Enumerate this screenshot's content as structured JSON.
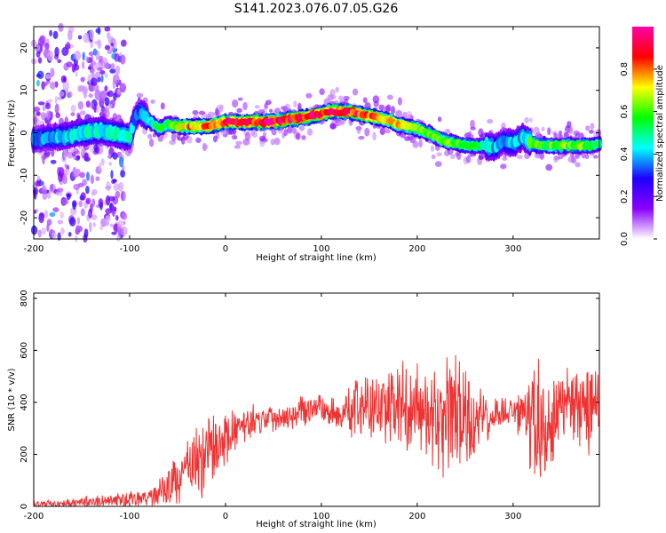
{
  "figure": {
    "title": "S141.2023.076.07.05.G26"
  },
  "chart_data": [
    {
      "type": "heatmap",
      "name": "spectrogram",
      "xlabel": "Height of straight line (km)",
      "ylabel": "Frequency (Hz)",
      "xlim": [
        -200,
        390
      ],
      "ylim": [
        -25,
        25
      ],
      "xticks": [
        -200,
        -100,
        0,
        100,
        200,
        300
      ],
      "yticks": [
        -20,
        -10,
        0,
        10,
        20
      ],
      "colorbar": {
        "label": "Normalized spectral amplitude",
        "range": [
          0,
          1
        ],
        "ticks": [
          "0.0",
          "0.2",
          "0.4",
          "0.6",
          "0.8"
        ],
        "colormap": [
          "#ffffff",
          "#8a00ff",
          "#1e00ff",
          "#00ffff",
          "#00ff00",
          "#ffff00",
          "#ff0000",
          "#ff00aa"
        ]
      },
      "ridge": {
        "x": [
          -200,
          -170,
          -150,
          -130,
          -110,
          -100,
          -95,
          -90,
          -80,
          -70,
          -60,
          -50,
          -40,
          -30,
          -20,
          -10,
          0,
          20,
          40,
          60,
          80,
          100,
          110,
          120,
          130,
          140,
          150,
          160,
          170,
          180,
          190,
          200,
          210,
          220,
          230,
          240,
          250,
          260,
          270,
          280,
          290,
          300,
          310,
          320,
          330,
          340,
          350,
          360,
          370,
          380,
          390
        ],
        "freq": [
          -1.5,
          -1,
          0,
          0.5,
          -0.5,
          -1,
          3,
          5,
          3,
          1,
          2,
          1.5,
          1.5,
          1.5,
          1.5,
          2,
          2.5,
          2.5,
          2.5,
          3,
          3.5,
          4.5,
          5,
          5,
          5,
          4.5,
          4,
          3.5,
          3,
          2,
          1.5,
          1,
          0,
          -1,
          -2,
          -2.5,
          -3,
          -3,
          -3,
          -3.5,
          -2,
          -2.5,
          -1,
          -2.5,
          -3,
          -3,
          -3,
          -3,
          -3,
          -3,
          -2.5
        ],
        "strength": [
          0.35,
          0.4,
          0.45,
          0.45,
          0.45,
          0.45,
          0.35,
          0.35,
          0.45,
          0.5,
          0.6,
          0.7,
          0.75,
          0.75,
          0.8,
          0.85,
          0.9,
          0.9,
          0.9,
          0.9,
          0.9,
          0.9,
          0.9,
          0.9,
          0.9,
          0.85,
          0.85,
          0.8,
          0.8,
          0.75,
          0.7,
          0.65,
          0.6,
          0.6,
          0.6,
          0.6,
          0.55,
          0.55,
          0.5,
          0.4,
          0.35,
          0.4,
          0.4,
          0.6,
          0.6,
          0.6,
          0.6,
          0.6,
          0.6,
          0.55,
          0.5
        ]
      }
    },
    {
      "type": "line",
      "name": "snr",
      "xlabel": "Height of straight line (km)",
      "ylabel": "SNR (10 * v/v)",
      "xlim": [
        -200,
        390
      ],
      "ylim": [
        0,
        820
      ],
      "xticks": [
        -200,
        -100,
        0,
        100,
        200,
        300
      ],
      "yticks": [
        0,
        200,
        400,
        600,
        800
      ],
      "color": "#ee3333",
      "series": [
        {
          "x": [
            -200,
            -180,
            -160,
            -140,
            -120,
            -100,
            -90,
            -80,
            -70,
            -60,
            -50,
            -40,
            -30,
            -20,
            -10,
            0,
            10,
            20,
            30,
            40,
            50,
            60,
            70,
            80,
            90,
            100,
            110,
            120,
            130,
            140,
            150,
            160,
            170,
            180,
            190,
            200,
            210,
            220,
            230,
            240,
            250,
            260,
            270,
            280,
            290,
            300,
            310,
            320,
            330,
            340,
            350,
            360,
            370,
            380,
            390
          ],
          "y": [
            8,
            10,
            15,
            18,
            22,
            25,
            30,
            35,
            50,
            80,
            110,
            140,
            170,
            200,
            230,
            260,
            290,
            310,
            330,
            340,
            340,
            350,
            360,
            370,
            380,
            380,
            360,
            350,
            360,
            380,
            380,
            390,
            380,
            370,
            360,
            380,
            350,
            320,
            330,
            340,
            300,
            320,
            340,
            350,
            360,
            360,
            350,
            280,
            320,
            350,
            380,
            390,
            380,
            350,
            400
          ],
          "spread": [
            10,
            12,
            15,
            18,
            20,
            25,
            28,
            30,
            40,
            60,
            80,
            100,
            120,
            130,
            110,
            90,
            70,
            60,
            50,
            50,
            50,
            50,
            50,
            50,
            40,
            40,
            60,
            80,
            100,
            110,
            110,
            120,
            120,
            140,
            170,
            140,
            130,
            150,
            180,
            200,
            220,
            150,
            80,
            60,
            50,
            60,
            80,
            260,
            220,
            160,
            120,
            110,
            120,
            140,
            150
          ]
        }
      ]
    }
  ]
}
